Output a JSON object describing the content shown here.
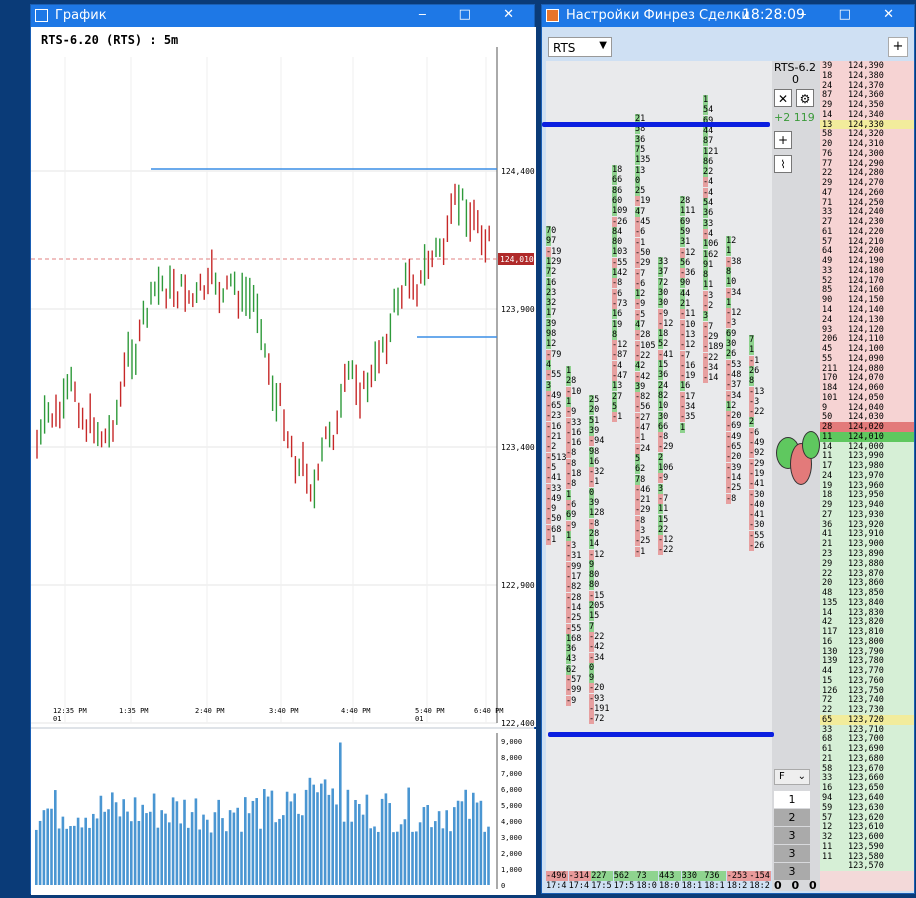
{
  "chart_window": {
    "title": "График",
    "symbol_label": "RTS-6.20 (RTS) : 5m",
    "price_ticks": [
      "124,400",
      "123,900",
      "123,400",
      "122,900",
      "122,400"
    ],
    "current_price": "124,010",
    "time_ticks": [
      "12:35 PM",
      "01",
      "1:35 PM",
      "2:40 PM",
      "3:40 PM",
      "4:40 PM",
      "5:40 PM",
      "01",
      "6:40 PM"
    ],
    "volume_ticks": [
      "9,000",
      "8,000",
      "7,000",
      "6,000",
      "5,000",
      "4,000",
      "3,000",
      "2,000",
      "1,000",
      "0"
    ],
    "colors": {
      "up": "#2e9a3a",
      "down": "#c62828",
      "level": "#3a8ee6",
      "volume": "#4a96d2"
    }
  },
  "trade_window": {
    "title": "Настройки Финрез Сделки",
    "clock": "18:28:09",
    "instrument": "RTS",
    "ladder_symbol": "RTS-6.2",
    "ladder_zero": "0",
    "pnl": "+2 119",
    "filter_label": "F",
    "steps": [
      "1",
      "2",
      "3",
      "3",
      "3"
    ],
    "bottom_counters": [
      "0",
      "0",
      "0"
    ],
    "footer_values": [
      "-496",
      "-314",
      "227",
      "562",
      "73",
      "443",
      "330",
      "736",
      "-253",
      "-154"
    ],
    "footer_times": [
      "17:4",
      "17:4",
      "17:5",
      "17:5",
      "18:0",
      "18:0",
      "18:1",
      "18:1",
      "18:2",
      "18:2"
    ],
    "ladder": [
      [
        "39",
        "124,390"
      ],
      [
        "18",
        "124,380"
      ],
      [
        "24",
        "124,370"
      ],
      [
        "87",
        "124,360"
      ],
      [
        "29",
        "124,350"
      ],
      [
        "14",
        "124,340"
      ],
      [
        "13",
        "124,330"
      ],
      [
        "58",
        "124,320"
      ],
      [
        "20",
        "124,310"
      ],
      [
        "76",
        "124,300"
      ],
      [
        "77",
        "124,290"
      ],
      [
        "22",
        "124,280"
      ],
      [
        "29",
        "124,270"
      ],
      [
        "47",
        "124,260"
      ],
      [
        "71",
        "124,250"
      ],
      [
        "33",
        "124,240"
      ],
      [
        "27",
        "124,230"
      ],
      [
        "61",
        "124,220"
      ],
      [
        "57",
        "124,210"
      ],
      [
        "64",
        "124,200"
      ],
      [
        "49",
        "124,190"
      ],
      [
        "33",
        "124,180"
      ],
      [
        "52",
        "124,170"
      ],
      [
        "85",
        "124,160"
      ],
      [
        "90",
        "124,150"
      ],
      [
        "14",
        "124,140"
      ],
      [
        "24",
        "124,130"
      ],
      [
        "93",
        "124,120"
      ],
      [
        "206",
        "124,110"
      ],
      [
        "45",
        "124,100"
      ],
      [
        "55",
        "124,090"
      ],
      [
        "211",
        "124,080"
      ],
      [
        "170",
        "124,070"
      ],
      [
        "184",
        "124,060"
      ],
      [
        "101",
        "124,050"
      ],
      [
        "9",
        "124,040"
      ],
      [
        "50",
        "124,030"
      ],
      [
        "28",
        "124,020"
      ],
      [
        "11",
        "124,010"
      ],
      [
        "14",
        "124,000"
      ],
      [
        "11",
        "123,990"
      ],
      [
        "17",
        "123,980"
      ],
      [
        "24",
        "123,970"
      ],
      [
        "19",
        "123,960"
      ],
      [
        "18",
        "123,950"
      ],
      [
        "29",
        "123,940"
      ],
      [
        "27",
        "123,930"
      ],
      [
        "36",
        "123,920"
      ],
      [
        "41",
        "123,910"
      ],
      [
        "21",
        "123,900"
      ],
      [
        "23",
        "123,890"
      ],
      [
        "29",
        "123,880"
      ],
      [
        "22",
        "123,870"
      ],
      [
        "20",
        "123,860"
      ],
      [
        "48",
        "123,850"
      ],
      [
        "135",
        "123,840"
      ],
      [
        "14",
        "123,830"
      ],
      [
        "42",
        "123,820"
      ],
      [
        "117",
        "123,810"
      ],
      [
        "16",
        "123,800"
      ],
      [
        "130",
        "123,790"
      ],
      [
        "139",
        "123,780"
      ],
      [
        "44",
        "123,770"
      ],
      [
        "15",
        "123,760"
      ],
      [
        "126",
        "123,750"
      ],
      [
        "72",
        "123,740"
      ],
      [
        "22",
        "123,730"
      ],
      [
        "65",
        "123,720"
      ],
      [
        "33",
        "123,710"
      ],
      [
        "68",
        "123,700"
      ],
      [
        "61",
        "123,690"
      ],
      [
        "21",
        "123,680"
      ],
      [
        "58",
        "123,670"
      ],
      [
        "33",
        "123,660"
      ],
      [
        "16",
        "123,650"
      ],
      [
        "94",
        "123,640"
      ],
      [
        "59",
        "123,630"
      ],
      [
        "57",
        "123,620"
      ],
      [
        "12",
        "123,610"
      ],
      [
        "32",
        "123,600"
      ],
      [
        "11",
        "123,590"
      ],
      [
        "11",
        "123,580"
      ],
      [
        "",
        "123,570"
      ]
    ],
    "cluster_columns": [
      [
        "70",
        "97",
        "-19",
        "129",
        "72",
        "16",
        "23",
        "32",
        "17",
        "39",
        "98",
        "12",
        "-79",
        "4",
        "-55",
        "3",
        "-49",
        "-65",
        "-23",
        "-16",
        "-21",
        "-2",
        "-513",
        "-5",
        "-41",
        "-33",
        "-49",
        "-9",
        "-50",
        "-68",
        "-1"
      ],
      [
        "1",
        "28",
        "-10",
        "1",
        "-9",
        "-33",
        "-16",
        "-16",
        "-8",
        "-8",
        "-18",
        "-8",
        "1",
        "-6",
        "69",
        "-9",
        "1",
        "-3",
        "-31",
        "-99",
        "-17",
        "-82",
        "-28",
        "-14",
        "-25",
        "-55",
        "168",
        "36",
        "43",
        "62",
        "-57",
        "-99",
        "-9"
      ],
      [
        "25",
        "20",
        "51",
        "39",
        "-94",
        "98",
        "16",
        "-32",
        "-1",
        "0",
        "39",
        "128",
        "-8",
        "28",
        "14",
        "-12",
        "9",
        "80",
        "80",
        "-15",
        "205",
        "15",
        "7",
        "-22",
        "-42",
        "-34",
        "0",
        "9",
        "-20",
        "-93",
        "-191",
        "-72"
      ],
      [
        "18",
        "66",
        "86",
        "60",
        "109",
        "-26",
        "84",
        "80",
        "103",
        "-55",
        "142",
        "-8",
        "-6",
        "-73",
        "16",
        "19",
        "8",
        "-12",
        "-87",
        "-4",
        "-47",
        "13",
        "27",
        "5",
        "-1"
      ],
      [
        "21",
        "58",
        "36",
        "75",
        "135",
        "13",
        "0",
        "25",
        "-19",
        "47",
        "-45",
        "-6",
        "-1",
        "-50",
        "-29",
        "-7",
        "-6",
        "12",
        "-9",
        "-5",
        "47",
        "-28",
        "-105",
        "-22",
        "42",
        "-42",
        "39",
        "-82",
        "-56",
        "-27",
        "-47",
        "-1",
        "-24",
        "5",
        "62",
        "78",
        "-46",
        "-21",
        "-29",
        "-8",
        "-3",
        "-25",
        "-1"
      ],
      [
        "33",
        "37",
        "72",
        "30",
        "30",
        "-9",
        "-12",
        "18",
        "52",
        "-41",
        "15",
        "36",
        "24",
        "82",
        "10",
        "30",
        "66",
        "-8",
        "-29",
        "2",
        "106",
        "-9",
        "3",
        "-7",
        "11",
        "15",
        "22",
        "-12",
        "-22"
      ],
      [
        "28",
        "111",
        "69",
        "59",
        "31",
        "-12",
        "56",
        "-36",
        "90",
        "44",
        "21",
        "-11",
        "-10",
        "-13",
        "-12",
        "-7",
        "-16",
        "-19",
        "16",
        "-17",
        "-34",
        "-35",
        "1"
      ],
      [
        "1",
        "54",
        "69",
        "44",
        "87",
        "121",
        "86",
        "22",
        "-4",
        "-4",
        "54",
        "36",
        "33",
        "-4",
        "106",
        "162",
        "91",
        "8",
        "11",
        "-3",
        "-2",
        "3",
        "-7",
        "-29",
        "-189",
        "-22",
        "-34",
        "-14"
      ],
      [
        "12",
        "1",
        "-38",
        "8",
        "10",
        "-34",
        "1",
        "-12",
        "-3",
        "69",
        "30",
        "26",
        "-53",
        "-48",
        "-37",
        "-34",
        "12",
        "-20",
        "-69",
        "-49",
        "-65",
        "-20",
        "-39",
        "-14",
        "-25",
        "-8"
      ],
      [
        "7",
        "1",
        "-1",
        "26",
        "8",
        "-13",
        "-3",
        "-22",
        "2",
        "-6",
        "-49",
        "-92",
        "-29",
        "-19",
        "-41",
        "-30",
        "-40",
        "-41",
        "-30",
        "-55",
        "-26"
      ]
    ]
  }
}
